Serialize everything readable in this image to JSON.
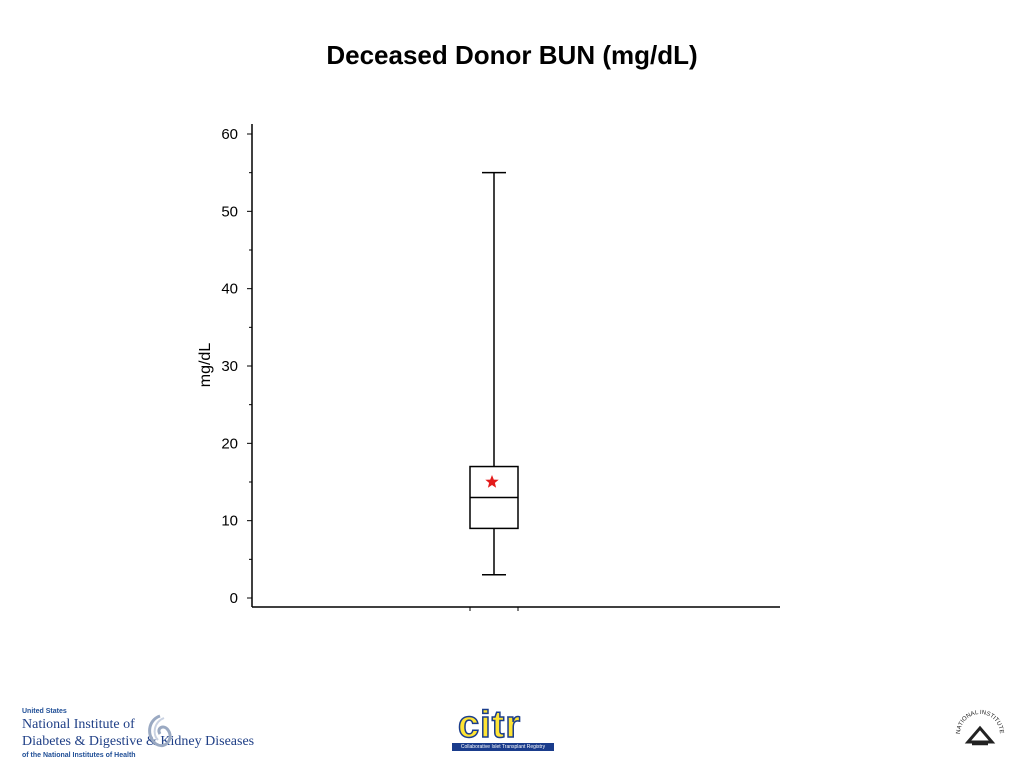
{
  "chart_data": {
    "type": "box",
    "title": "Deceased Donor BUN (mg/dL)",
    "xlabel": "",
    "ylabel": "mg/dL",
    "ylim": [
      0,
      60
    ],
    "yticks": [
      0,
      10,
      20,
      30,
      40,
      50,
      60
    ],
    "grid": false,
    "boxes": [
      {
        "min": 3,
        "q1": 9,
        "median": 13,
        "q3": 17,
        "max": 55,
        "mean": 15
      }
    ],
    "colors": {
      "mean_marker": "#e31b1b",
      "lines": "#000000"
    }
  },
  "footer": {
    "niddk": {
      "line1": "United States",
      "line2": "National Institute of",
      "line3": "Diabetes & Digestive & Kidney Diseases",
      "line4": "of the National Institutes of Health"
    },
    "citr": {
      "word": "citr",
      "tagline": "Collaborative Islet Transplant Registry"
    },
    "nih": {
      "text": "NATIONAL INSTITUTES OF HEALTH"
    }
  }
}
